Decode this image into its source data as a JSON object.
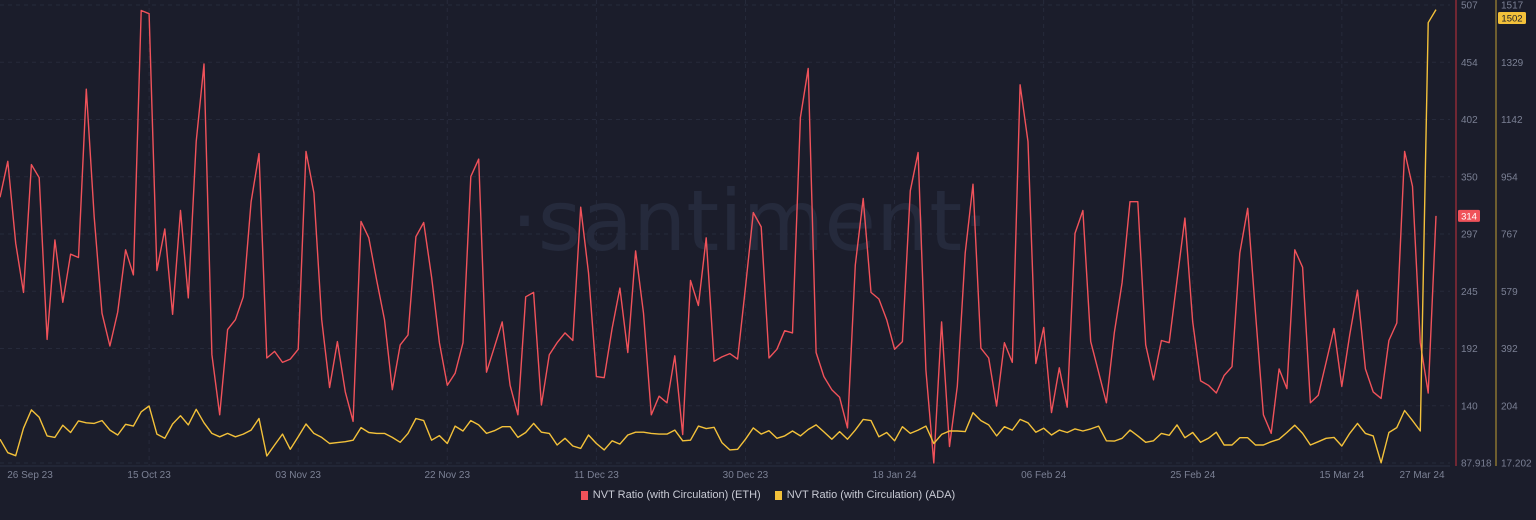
{
  "chart_data": {
    "type": "line",
    "title": "",
    "watermark": "·santiment·",
    "x_start": "2023-09-26",
    "x_step": "1 day",
    "x_ticks": [
      {
        "index": 0,
        "label": "26 Sep 23"
      },
      {
        "index": 19,
        "label": "15 Oct 23"
      },
      {
        "index": 38,
        "label": "03 Nov 23"
      },
      {
        "index": 57,
        "label": "22 Nov 23"
      },
      {
        "index": 76,
        "label": "11 Dec 23"
      },
      {
        "index": 95,
        "label": "30 Dec 23"
      },
      {
        "index": 114,
        "label": "18 Jan 24"
      },
      {
        "index": 133,
        "label": "06 Feb 24"
      },
      {
        "index": 152,
        "label": "25 Feb 24"
      },
      {
        "index": 171,
        "label": "15 Mar 24"
      },
      {
        "index": 183,
        "label": "27 Mar 24"
      }
    ],
    "grid": true,
    "legend_position": "bottom-center",
    "series": [
      {
        "name": "NVT Ratio (with Circulation) (ETH)",
        "color": "#f0525a",
        "axis": "left-of-right",
        "ylim": [
          87.918,
          507
        ],
        "y_ticks": [
          "507",
          "454",
          "402",
          "350",
          "297",
          "245",
          "192",
          "140",
          "87.918"
        ],
        "last_value_badge": "314",
        "values": [
          331,
          364,
          289,
          244,
          361,
          349,
          201,
          292,
          235,
          279,
          276,
          430,
          313,
          225,
          195,
          226,
          283,
          260,
          502,
          499,
          264,
          302,
          224,
          319,
          239,
          382,
          453,
          187,
          132,
          210,
          219,
          240,
          327,
          371,
          184,
          190,
          180,
          183,
          192,
          373,
          335,
          219,
          157,
          199,
          153,
          126,
          309,
          294,
          255,
          219,
          155,
          196,
          205,
          295,
          308,
          258,
          198,
          159,
          170,
          198,
          350,
          366,
          171,
          194,
          217,
          159,
          132,
          240,
          244,
          141,
          187,
          198,
          207,
          200,
          322,
          262,
          167,
          166,
          211,
          248,
          189,
          282,
          225,
          132,
          149,
          143,
          186,
          114,
          255,
          232,
          294,
          181,
          185,
          188,
          183,
          249,
          317,
          304,
          184,
          192,
          209,
          207,
          404,
          449,
          189,
          167,
          155,
          148,
          120,
          269,
          330,
          244,
          238,
          219,
          192,
          199,
          337,
          372,
          173,
          88,
          217,
          103,
          158,
          280,
          343,
          193,
          184,
          140,
          198,
          180,
          434,
          382,
          179,
          212,
          134,
          175,
          139,
          298,
          319,
          199,
          171,
          143,
          207,
          253,
          327,
          327,
          196,
          164,
          200,
          198,
          255,
          312,
          217,
          163,
          159,
          152,
          168,
          176,
          280,
          321,
          225,
          132,
          115,
          174,
          156,
          283,
          267,
          143,
          150,
          180,
          211,
          158,
          205,
          246,
          174,
          153,
          147,
          200,
          216,
          373,
          341,
          198,
          152,
          314
        ]
      },
      {
        "name": "NVT Ratio (with Circulation) (ADA)",
        "color": "#f3c13a",
        "axis": "right",
        "ylim": [
          17.202,
          1517
        ],
        "y_ticks": [
          "1517",
          "1329",
          "1142",
          "954",
          "767",
          "579",
          "392",
          "204",
          "17.202"
        ],
        "last_value_badge": "1502",
        "values": [
          95,
          51,
          41,
          131,
          191,
          167,
          106,
          101,
          141,
          117,
          155,
          149,
          147,
          156,
          125,
          109,
          144,
          138,
          185,
          204,
          112,
          98,
          145,
          172,
          142,
          193,
          149,
          114,
          103,
          114,
          103,
          112,
          125,
          163,
          40,
          76,
          112,
          62,
          103,
          145,
          114,
          101,
          81,
          84,
          87,
          92,
          133,
          117,
          114,
          114,
          101,
          85,
          114,
          163,
          156,
          92,
          107,
          81,
          138,
          122,
          156,
          142,
          114,
          123,
          136,
          136,
          101,
          117,
          147,
          118,
          114,
          76,
          98,
          73,
          65,
          109,
          81,
          60,
          90,
          79,
          109,
          118,
          118,
          114,
          112,
          112,
          125,
          90,
          92,
          138,
          130,
          134,
          84,
          60,
          62,
          95,
          132,
          112,
          123,
          98,
          106,
          122,
          106,
          127,
          142,
          119,
          95,
          120,
          95,
          125,
          160,
          156,
          103,
          117,
          90,
          136,
          114,
          125,
          138,
          81,
          111,
          122,
          122,
          120,
          182,
          156,
          142,
          106,
          136,
          125,
          160,
          149,
          118,
          131,
          109,
          125,
          117,
          129,
          122,
          129,
          138,
          90,
          89,
          98,
          125,
          106,
          85,
          90,
          114,
          108,
          142,
          100,
          117,
          85,
          98,
          118,
          76,
          76,
          100,
          100,
          76,
          76,
          87,
          95,
          117,
          141,
          114,
          76,
          87,
          98,
          101,
          73,
          114,
          147,
          114,
          106,
          18,
          117,
          133,
          189,
          156,
          122,
          1459,
          1502
        ]
      }
    ]
  }
}
